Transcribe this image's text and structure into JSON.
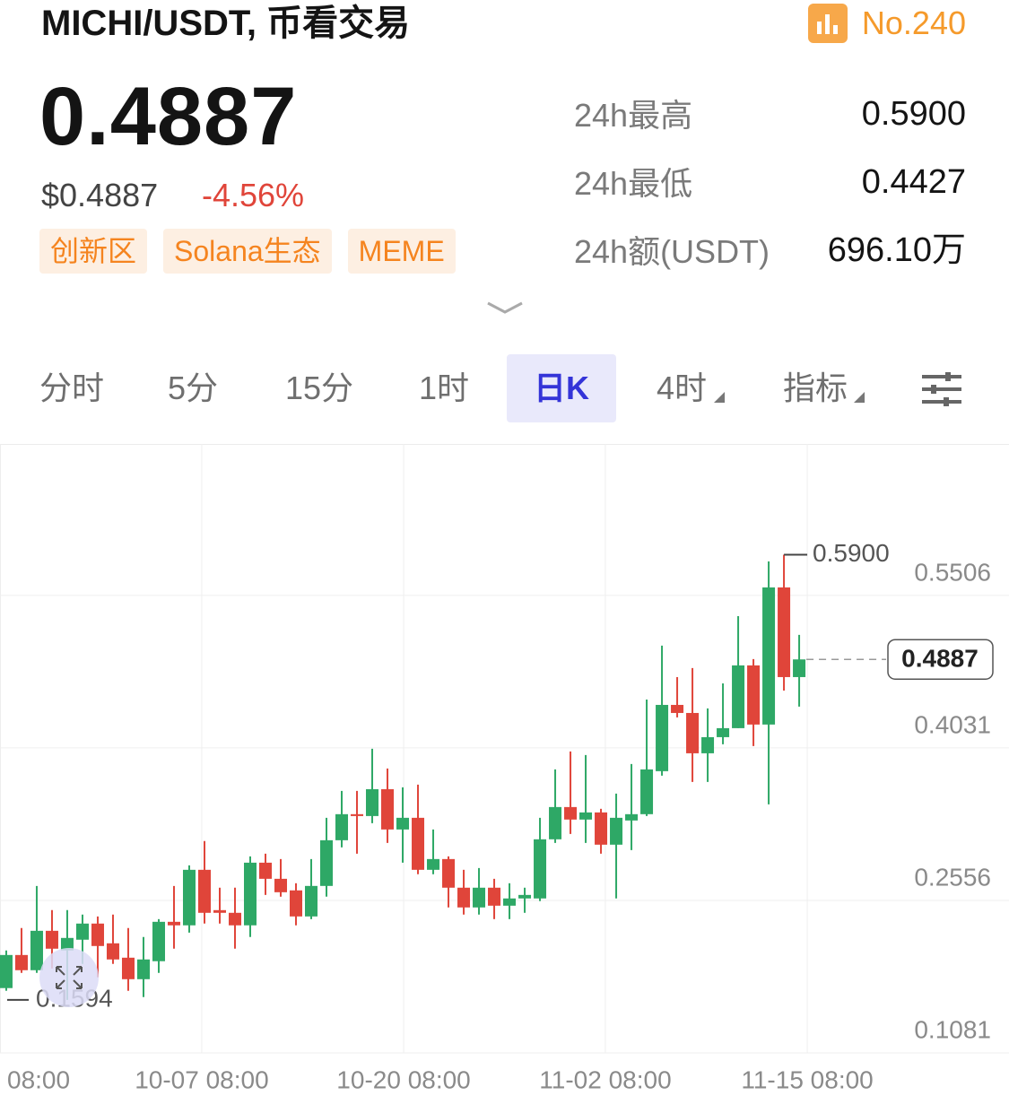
{
  "header": {
    "pair": "MICHI/USDT, 币看交易",
    "rank": "No.240"
  },
  "price": {
    "last": "0.4887",
    "usd": "$0.4887",
    "change": "-4.56%",
    "tags": [
      "创新区",
      "Solana生态",
      "MEME"
    ]
  },
  "stats": [
    {
      "label": "24h最高",
      "value": "0.5900"
    },
    {
      "label": "24h最低",
      "value": "0.4427"
    },
    {
      "label": "24h额(USDT)",
      "value": "696.10万"
    }
  ],
  "tabs": [
    "分时",
    "5分",
    "15分",
    "1时",
    "日K",
    "4时",
    "指标"
  ],
  "chart_data": {
    "type": "candlestick",
    "x": [
      0,
      1,
      2,
      3,
      4,
      5,
      6,
      7,
      8,
      9,
      10,
      11,
      12,
      13,
      14,
      15,
      16,
      17,
      18,
      19,
      20,
      21,
      22,
      23,
      24,
      25,
      26,
      27,
      28,
      29,
      30,
      31,
      32,
      33,
      34,
      35,
      36,
      37,
      38,
      39,
      40,
      41,
      42,
      43,
      44,
      45,
      46,
      47,
      48,
      49,
      50,
      51,
      52
    ],
    "open": [
      0.1708,
      0.2028,
      0.1881,
      0.2262,
      0.2072,
      0.2176,
      0.2332,
      0.2141,
      0.2002,
      0.1794,
      0.1968,
      0.2349,
      0.2315,
      0.2852,
      0.2462,
      0.2436,
      0.2315,
      0.2921,
      0.2765,
      0.2653,
      0.2401,
      0.2696,
      0.3138,
      0.339,
      0.3372,
      0.3632,
      0.3242,
      0.3355,
      0.2852,
      0.2956,
      0.2679,
      0.2488,
      0.2679,
      0.2505,
      0.2575,
      0.2575,
      0.3147,
      0.3459,
      0.3338,
      0.3407,
      0.3095,
      0.3329,
      0.339,
      0.3806,
      0.4447,
      0.4369,
      0.3979,
      0.4135,
      0.4222,
      0.4829,
      0.4257,
      0.5583,
      0.4716
    ],
    "high": [
      0.2072,
      0.2289,
      0.2696,
      0.2462,
      0.2462,
      0.2419,
      0.2401,
      0.2419,
      0.2289,
      0.2202,
      0.2375,
      0.2696,
      0.2895,
      0.313,
      0.2679,
      0.2679,
      0.2982,
      0.3008,
      0.2956,
      0.2722,
      0.2956,
      0.3355,
      0.3615,
      0.3615,
      0.4023,
      0.3832,
      0.365,
      0.3676,
      0.3242,
      0.2982,
      0.2852,
      0.2869,
      0.2765,
      0.2722,
      0.2679,
      0.3355,
      0.3823,
      0.3997,
      0.3962,
      0.3442,
      0.3589,
      0.3875,
      0.4499,
      0.502,
      0.4716,
      0.4803,
      0.4413,
      0.4655,
      0.5306,
      0.489,
      0.5835,
      0.59,
      0.5124
    ],
    "low": [
      0.1682,
      0.1855,
      0.1855,
      0.1898,
      0.1594,
      0.1942,
      0.1812,
      0.1942,
      0.1682,
      0.1621,
      0.1855,
      0.2089,
      0.2245,
      0.2332,
      0.2332,
      0.2089,
      0.2202,
      0.2609,
      0.2592,
      0.2315,
      0.2375,
      0.2592,
      0.3069,
      0.3008,
      0.3303,
      0.3112,
      0.2921,
      0.2809,
      0.2809,
      0.2488,
      0.2419,
      0.2419,
      0.2375,
      0.2375,
      0.2436,
      0.2549,
      0.3112,
      0.3199,
      0.3112,
      0.3008,
      0.2575,
      0.3043,
      0.3372,
      0.3762,
      0.4326,
      0.3702,
      0.3702,
      0.4066,
      0.4222,
      0.4049,
      0.3485,
      0.4586,
      0.443
    ],
    "close": [
      0.2028,
      0.1881,
      0.2262,
      0.2089,
      0.2193,
      0.2332,
      0.2115,
      0.1985,
      0.1794,
      0.1985,
      0.2349,
      0.2315,
      0.2852,
      0.2436,
      0.2436,
      0.2315,
      0.2921,
      0.2765,
      0.2635,
      0.2401,
      0.2696,
      0.3138,
      0.339,
      0.3372,
      0.3632,
      0.3242,
      0.3355,
      0.2852,
      0.2956,
      0.2679,
      0.2488,
      0.2679,
      0.2505,
      0.2575,
      0.2609,
      0.3147,
      0.3459,
      0.3338,
      0.3407,
      0.3095,
      0.3355,
      0.339,
      0.3823,
      0.4447,
      0.4369,
      0.3979,
      0.4135,
      0.4222,
      0.4829,
      0.4257,
      0.5583,
      0.4716,
      0.4887
    ],
    "up_color": "#2ea866",
    "down_color": "#e0453a",
    "xlim": [
      -0.41,
      65.76
    ],
    "xticks": [
      {
        "value": -0.41,
        "label": "08:00"
      },
      {
        "value": 12.82,
        "label": "10-07 08:00"
      },
      {
        "value": 26.06,
        "label": "10-20 08:00"
      },
      {
        "value": 39.29,
        "label": "11-02 08:00"
      },
      {
        "value": 52.53,
        "label": "11-15 08:00"
      }
    ],
    "ylim": [
      0.1081,
      0.6971
    ],
    "yticks": [
      0.5506,
      0.4031,
      0.2556,
      0.1081
    ],
    "grid": true,
    "annotations": [
      {
        "text": "0.5900",
        "value": 0.59,
        "kind": "high"
      },
      {
        "text": "0.1594",
        "value": 0.1594,
        "kind": "low"
      },
      {
        "text": "0.4887",
        "value": 0.4887,
        "kind": "last"
      }
    ]
  }
}
